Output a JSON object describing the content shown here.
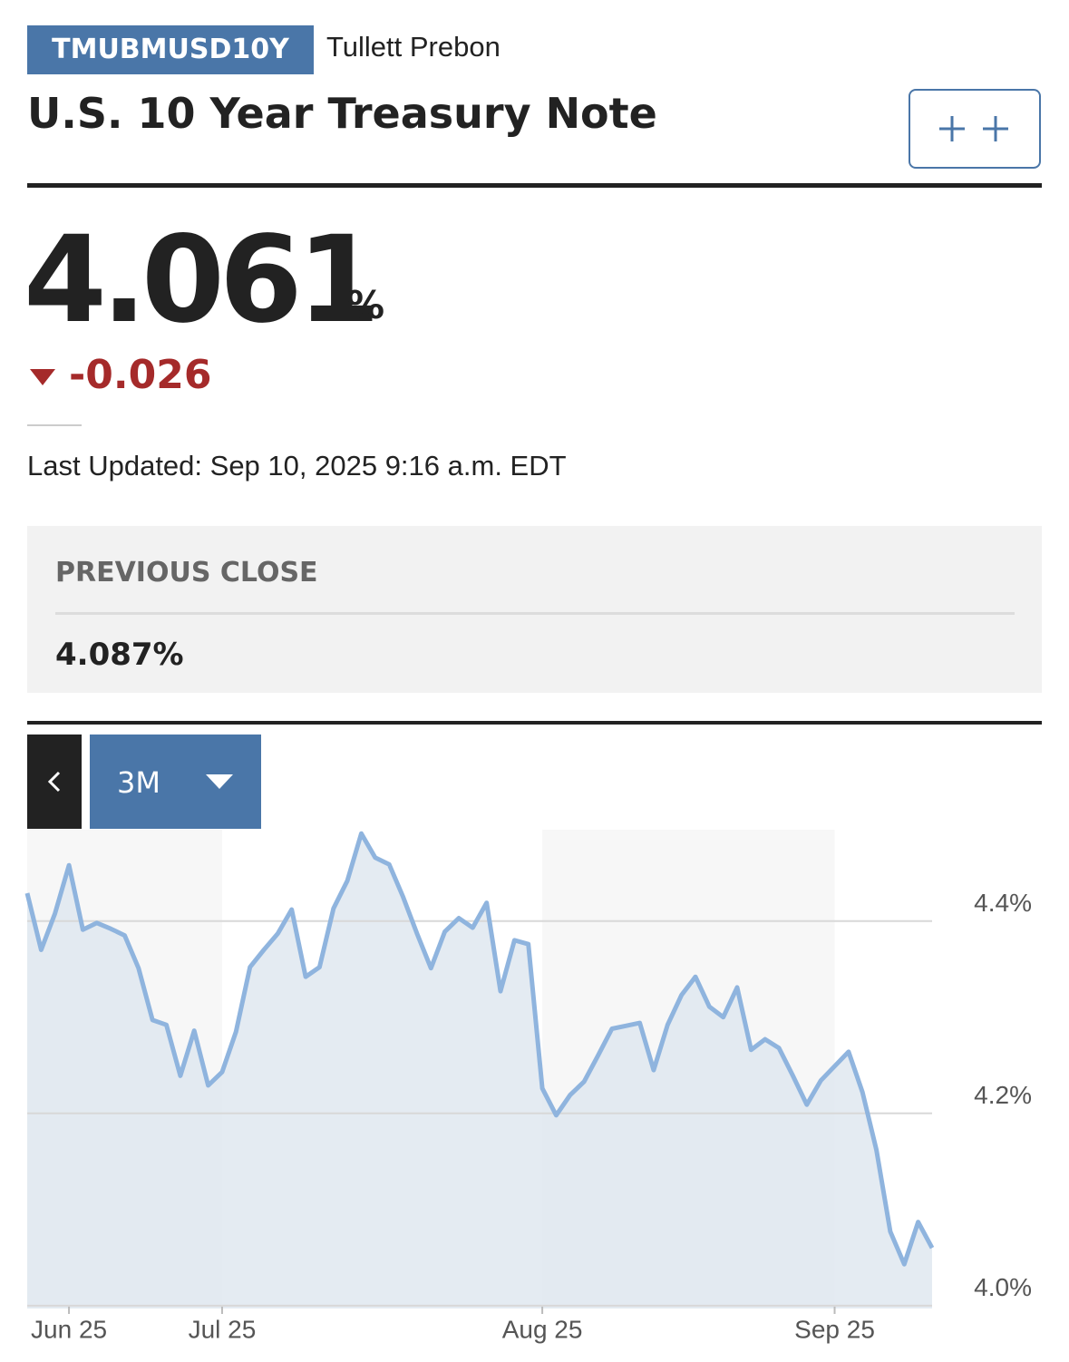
{
  "header": {
    "ticker": "TMUBMUSD10Y",
    "source": "Tullett Prebon",
    "title": "U.S. 10 Year Treasury Note"
  },
  "quote": {
    "price": "4.061",
    "unit": "%",
    "change": "-0.026",
    "last_updated": "Last Updated: Sep 10, 2025 9:16 a.m. EDT"
  },
  "previous_close": {
    "label": "PREVIOUS CLOSE",
    "value": "4.087%"
  },
  "range_selector": {
    "selected": "3M"
  },
  "chart_data": {
    "type": "area",
    "color": "#8fb4de",
    "fill": "#dfe7f0",
    "x": [
      0,
      1,
      2,
      3,
      4,
      5,
      6,
      7,
      8,
      9,
      10,
      11,
      12,
      13,
      14,
      15,
      16,
      17,
      18,
      19,
      20,
      21,
      22,
      23,
      24,
      25,
      26,
      27,
      28,
      29,
      30,
      31,
      32,
      33,
      34,
      35,
      36,
      37,
      38,
      39,
      40,
      41,
      42,
      43,
      44,
      45,
      46,
      47,
      48,
      49,
      50,
      51,
      52,
      53,
      54,
      55,
      56,
      57,
      58,
      59,
      60,
      61,
      62,
      63,
      64,
      65
    ],
    "values": [
      4.429,
      4.37,
      4.408,
      4.458,
      4.391,
      4.398,
      4.392,
      4.385,
      4.351,
      4.297,
      4.292,
      4.239,
      4.286,
      4.229,
      4.243,
      4.285,
      4.352,
      4.37,
      4.387,
      4.412,
      4.342,
      4.352,
      4.413,
      4.442,
      4.491,
      4.466,
      4.459,
      4.425,
      4.387,
      4.351,
      4.389,
      4.403,
      4.393,
      4.419,
      4.327,
      4.38,
      4.376,
      4.226,
      4.198,
      4.219,
      4.233,
      4.26,
      4.288,
      4.291,
      4.294,
      4.245,
      4.292,
      4.323,
      4.342,
      4.311,
      4.3,
      4.331,
      4.266,
      4.277,
      4.268,
      4.239,
      4.209,
      4.234,
      4.249,
      4.264,
      4.222,
      4.162,
      4.077,
      4.043,
      4.087,
      4.06
    ],
    "xlim": [
      0,
      65
    ],
    "xticks": [
      {
        "value": 3,
        "label": "Jun 25"
      },
      {
        "value": 14,
        "label": "Jul 25"
      },
      {
        "value": 37,
        "label": "Aug 25"
      },
      {
        "value": 58,
        "label": "Sep 25"
      }
    ],
    "ylim": [
      3.997,
      4.495
    ],
    "yticks": [
      {
        "value": 4.0,
        "label": "4.0%"
      },
      {
        "value": 4.2,
        "label": "4.2%"
      },
      {
        "value": 4.4,
        "label": "4.4%"
      }
    ],
    "grid": true
  }
}
